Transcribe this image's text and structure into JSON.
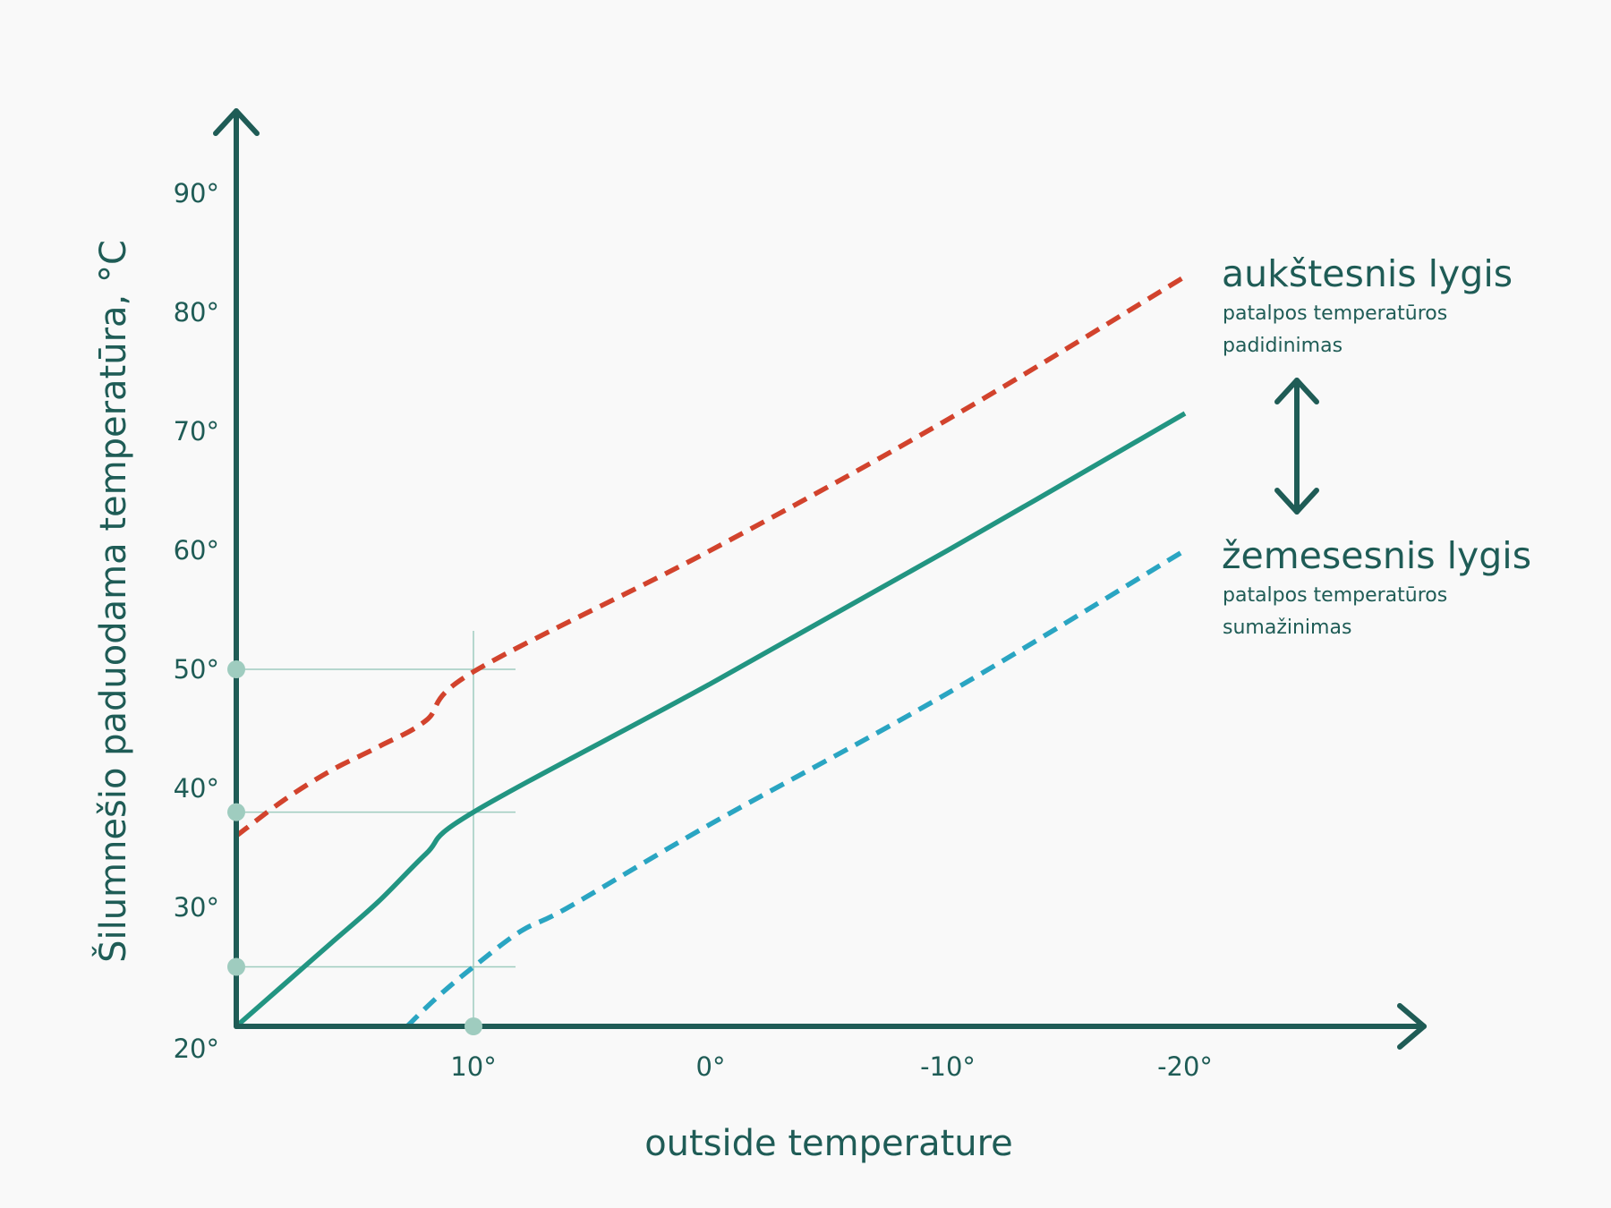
{
  "chart_data": {
    "type": "line",
    "xlabel": "outside temperature",
    "ylabel": "Šilumnešio paduodama temperatūra, °C",
    "x_ticks": [
      {
        "value": 10,
        "label": "10°"
      },
      {
        "value": 0,
        "label": "0°"
      },
      {
        "value": -10,
        "label": "-10°"
      },
      {
        "value": -20,
        "label": "-20°"
      }
    ],
    "y_ticks": [
      {
        "value": 20,
        "label": "20°"
      },
      {
        "value": 30,
        "label": "30°"
      },
      {
        "value": 40,
        "label": "40°"
      },
      {
        "value": 50,
        "label": "50°"
      },
      {
        "value": 60,
        "label": "60°"
      },
      {
        "value": 70,
        "label": "70°"
      },
      {
        "value": 80,
        "label": "80°"
      },
      {
        "value": 90,
        "label": "90°"
      }
    ],
    "xlim": [
      20,
      -30
    ],
    "ylim": [
      20,
      95
    ],
    "x_reversed": true,
    "grid": false,
    "series": [
      {
        "style": "dashed",
        "color": "#d2432d",
        "points": [
          [
            20,
            36
          ],
          [
            18,
            39
          ],
          [
            16,
            41.5
          ],
          [
            14,
            43.5
          ],
          [
            12,
            45.7
          ],
          [
            10,
            49.8
          ],
          [
            0,
            60
          ],
          [
            -10,
            71
          ],
          [
            -20,
            83
          ]
        ]
      },
      {
        "style": "solid",
        "color": "#229582",
        "points": [
          [
            20,
            20
          ],
          [
            18,
            23.5
          ],
          [
            16,
            27
          ],
          [
            14,
            30.5
          ],
          [
            12,
            34.5
          ],
          [
            10,
            38
          ],
          [
            0,
            48.8
          ],
          [
            -10,
            60
          ],
          [
            -20,
            71.5
          ]
        ]
      },
      {
        "style": "dashed",
        "color": "#2aa5c2",
        "points": [
          [
            12.8,
            20
          ],
          [
            11.5,
            22.5
          ],
          [
            10,
            25
          ],
          [
            8,
            28
          ],
          [
            6,
            30
          ],
          [
            0,
            37
          ],
          [
            -10,
            48
          ],
          [
            -20,
            60
          ]
        ]
      }
    ],
    "reference": {
      "x": 10,
      "y_values": [
        50,
        38,
        25
      ],
      "color": "#9fccbf"
    },
    "annotations": [
      {
        "title": "aukštesnis lygis",
        "lines": [
          "patalpos temperatūros",
          "padidinimas"
        ]
      },
      {
        "title": "žemesesnis lygis",
        "lines": [
          "patalpos temperatūros",
          "sumažinimas"
        ]
      }
    ],
    "axis_color": "#1f5c56"
  }
}
